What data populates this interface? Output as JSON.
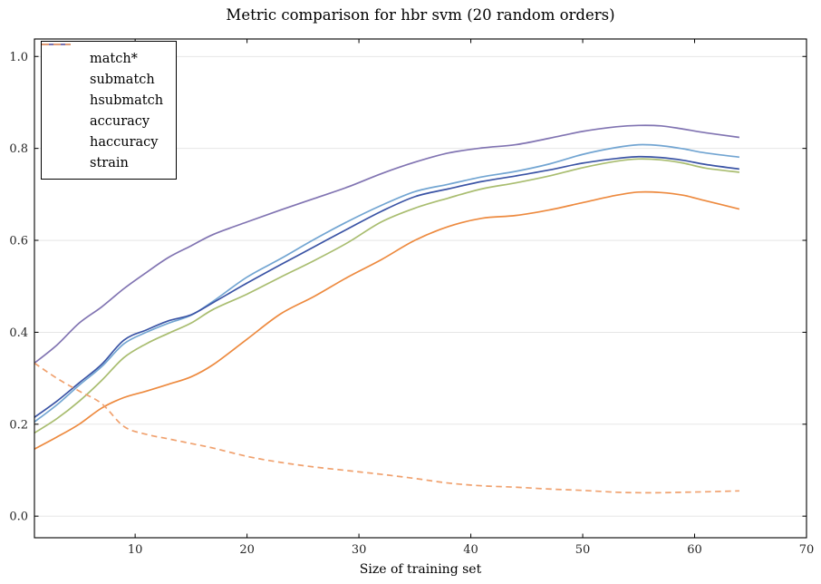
{
  "title": "Metric comparison for hbr svm (20 random orders)",
  "colors": {
    "axis": "#000000",
    "grid": "#e2e2e2",
    "background": "#ffffff",
    "tick_label": "#262626"
  },
  "chart_data": {
    "type": "line",
    "title": "Metric comparison for hbr svm (20 random orders)",
    "xlabel": "Size of training set",
    "ylabel": "",
    "xlim": [
      1,
      70
    ],
    "ylim": [
      -0.047,
      1.038
    ],
    "x_ticks": [
      10,
      20,
      30,
      40,
      50,
      60,
      70
    ],
    "y_ticks": [
      0.0,
      0.2,
      0.4,
      0.6,
      0.8,
      1.0
    ],
    "y_tick_labels": [
      "0.0",
      "0.2",
      "0.4",
      "0.6",
      "0.8",
      "1.0"
    ],
    "grid": "horizontal-only",
    "legend_position": "upper-left",
    "x": [
      1,
      3,
      5,
      7,
      9,
      11,
      13,
      15,
      17,
      20,
      23,
      26,
      29,
      32,
      35,
      38,
      41,
      44,
      47,
      50,
      53,
      55,
      57,
      59,
      61,
      64
    ],
    "series": [
      {
        "name": "match*",
        "color": "#ed8a3f",
        "style": "solid",
        "values": [
          0.146,
          0.172,
          0.2,
          0.235,
          0.258,
          0.272,
          0.287,
          0.303,
          0.33,
          0.385,
          0.44,
          0.478,
          0.52,
          0.558,
          0.6,
          0.63,
          0.648,
          0.654,
          0.666,
          0.682,
          0.698,
          0.705,
          0.704,
          0.698,
          0.686,
          0.668
        ]
      },
      {
        "name": "submatch",
        "color": "#a9bd70",
        "style": "solid",
        "values": [
          0.181,
          0.212,
          0.25,
          0.295,
          0.345,
          0.375,
          0.398,
          0.42,
          0.45,
          0.483,
          0.52,
          0.556,
          0.595,
          0.64,
          0.67,
          0.692,
          0.712,
          0.725,
          0.74,
          0.758,
          0.772,
          0.777,
          0.775,
          0.768,
          0.757,
          0.748
        ]
      },
      {
        "name": "hsubmatch",
        "color": "#72a5d2",
        "style": "solid",
        "values": [
          0.205,
          0.242,
          0.285,
          0.325,
          0.375,
          0.4,
          0.42,
          0.437,
          0.468,
          0.52,
          0.56,
          0.602,
          0.641,
          0.676,
          0.706,
          0.722,
          0.738,
          0.75,
          0.766,
          0.787,
          0.802,
          0.808,
          0.806,
          0.799,
          0.79,
          0.781
        ]
      },
      {
        "name": "accuracy",
        "color": "#3b54a5",
        "style": "solid",
        "values": [
          0.215,
          0.25,
          0.29,
          0.33,
          0.383,
          0.405,
          0.425,
          0.438,
          0.465,
          0.507,
          0.547,
          0.586,
          0.625,
          0.663,
          0.695,
          0.712,
          0.728,
          0.74,
          0.753,
          0.768,
          0.778,
          0.782,
          0.78,
          0.774,
          0.765,
          0.755
        ]
      },
      {
        "name": "haccuracy",
        "color": "#8174b2",
        "style": "solid",
        "values": [
          0.333,
          0.372,
          0.42,
          0.455,
          0.495,
          0.53,
          0.563,
          0.588,
          0.613,
          0.64,
          0.666,
          0.691,
          0.716,
          0.745,
          0.77,
          0.79,
          0.801,
          0.808,
          0.822,
          0.837,
          0.847,
          0.85,
          0.849,
          0.842,
          0.834,
          0.824
        ]
      },
      {
        "name": "strain",
        "color": "#f0a16e",
        "style": "dashed",
        "values": [
          0.333,
          0.3,
          0.272,
          0.245,
          0.195,
          0.178,
          0.168,
          0.158,
          0.148,
          0.13,
          0.117,
          0.107,
          0.099,
          0.091,
          0.082,
          0.072,
          0.066,
          0.063,
          0.059,
          0.056,
          0.052,
          0.051,
          0.051,
          0.052,
          0.053,
          0.055
        ]
      }
    ]
  }
}
